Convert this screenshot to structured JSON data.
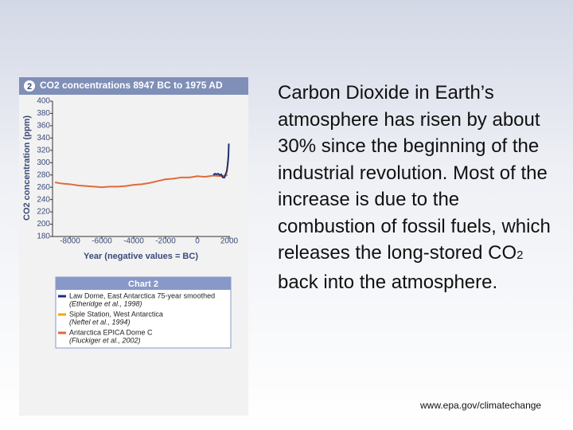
{
  "chart_data": {
    "type": "line",
    "badge": "2",
    "title": "CO2 concentrations 8947 BC to 1975 AD",
    "y_label": "CO2 concentration (ppm)",
    "x_label": "Year (negative values = BC)",
    "xlim": [
      -9100,
      2050
    ],
    "xticks": [
      -8000,
      -6000,
      -4000,
      -2000,
      0,
      2000
    ],
    "ylim": [
      180,
      400
    ],
    "yticks": [
      180,
      200,
      220,
      240,
      260,
      280,
      300,
      320,
      340,
      360,
      380,
      400
    ],
    "legend_title": "Chart 2",
    "series": [
      {
        "name": "Law Dome, East Antarctica 75-year smoothed",
        "citation": "(Etheridge et al., 1998)",
        "color": "#1f2f7a",
        "x": [
          1006,
          1100,
          1200,
          1300,
          1400,
          1500,
          1600,
          1700,
          1800,
          1850,
          1900,
          1950,
          1975
        ],
        "values": [
          280,
          282,
          281,
          282,
          280,
          281,
          276,
          276,
          283,
          286,
          296,
          310,
          331
        ]
      },
      {
        "name": "Siple Station, West Antarctica",
        "citation": "(Neftel et al., 1994)",
        "color": "#f0a800",
        "x": [
          1744,
          1800,
          1850,
          1900,
          1920,
          1953
        ],
        "values": [
          277,
          281,
          287,
          296,
          301,
          312
        ]
      },
      {
        "name": "Antarctica EPICA Dome C",
        "citation": "(Fluckiger et al., 2002)",
        "color": "#e06a3a",
        "x": [
          -8947,
          -8500,
          -8000,
          -7500,
          -7000,
          -6500,
          -6000,
          -5500,
          -5000,
          -4500,
          -4000,
          -3500,
          -3000,
          -2500,
          -2000,
          -1500,
          -1000,
          -500,
          0,
          500,
          1000,
          1500,
          1900
        ],
        "values": [
          268,
          266,
          265,
          263,
          262,
          261,
          260,
          261,
          261,
          262,
          264,
          265,
          267,
          270,
          273,
          274,
          276,
          276,
          278,
          277,
          279,
          278,
          280
        ]
      }
    ]
  },
  "slide": {
    "body": [
      "Carbon Dioxide in Earth’s atmosphere has risen by about 30% since the beginning of the industrial revolution. Most of the increase is due to the combustion of fossil fuels, which releases the long-stored CO",
      "2",
      " back into the atmosphere."
    ],
    "source": "www.epa.gov/climatechange"
  }
}
